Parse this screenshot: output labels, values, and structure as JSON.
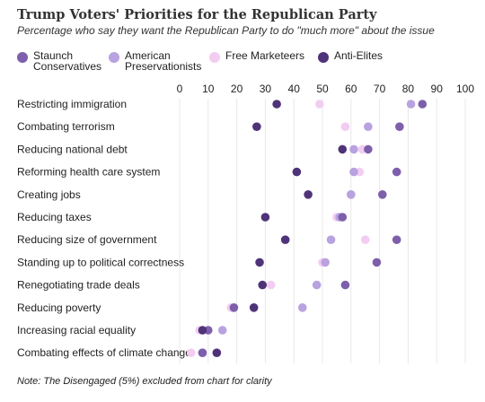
{
  "title": "Trump Voters' Priorities for the Republican Party",
  "subtitle": "Percentage who say they want the Republican Party to do \"much more\" about the issue",
  "note": "Note: The Disengaged (5%) excluded from chart for clarity",
  "legend": [
    {
      "label": "Staunch Conservatives",
      "color": "#7e5fab"
    },
    {
      "label": "American Preservationists",
      "color": "#b8a2e0"
    },
    {
      "label": "Free Marketeers",
      "color": "#f3cdf1"
    },
    {
      "label": "Anti-Elites",
      "color": "#4f3378"
    }
  ],
  "chart_data": {
    "type": "scatter",
    "orientation": "horizontal dot plot",
    "xlim": [
      0,
      100
    ],
    "xticks": [
      0,
      10,
      20,
      30,
      40,
      50,
      60,
      70,
      80,
      90,
      100
    ],
    "grid": true,
    "legend_position": "top",
    "categories": [
      "Restricting immigration",
      "Combating terrorism",
      "Reducing national debt",
      "Reforming health care system",
      "Creating jobs",
      "Reducing taxes",
      "Reducing size of government",
      "Standing up to political correctness",
      "Renegotiating trade deals",
      "Reducing poverty",
      "Increasing racial equality",
      "Combating effects of climate change"
    ],
    "series": [
      {
        "name": "Staunch Conservatives",
        "color": "#7e5fab",
        "values": [
          85,
          77,
          66,
          76,
          71,
          57,
          76,
          69,
          58,
          19,
          10,
          8
        ]
      },
      {
        "name": "American Preservationists",
        "color": "#b8a2e0",
        "values": [
          81,
          66,
          61,
          61,
          60,
          56,
          53,
          51,
          48,
          43,
          15,
          8
        ]
      },
      {
        "name": "Free Marketeers",
        "color": "#f3cdf1",
        "values": [
          49,
          58,
          64,
          63,
          60,
          55,
          65,
          50,
          32,
          18,
          7,
          4
        ]
      },
      {
        "name": "Anti-Elites",
        "color": "#4f3378",
        "values": [
          34,
          27,
          57,
          41,
          45,
          30,
          37,
          28,
          29,
          26,
          8,
          13
        ]
      }
    ]
  }
}
